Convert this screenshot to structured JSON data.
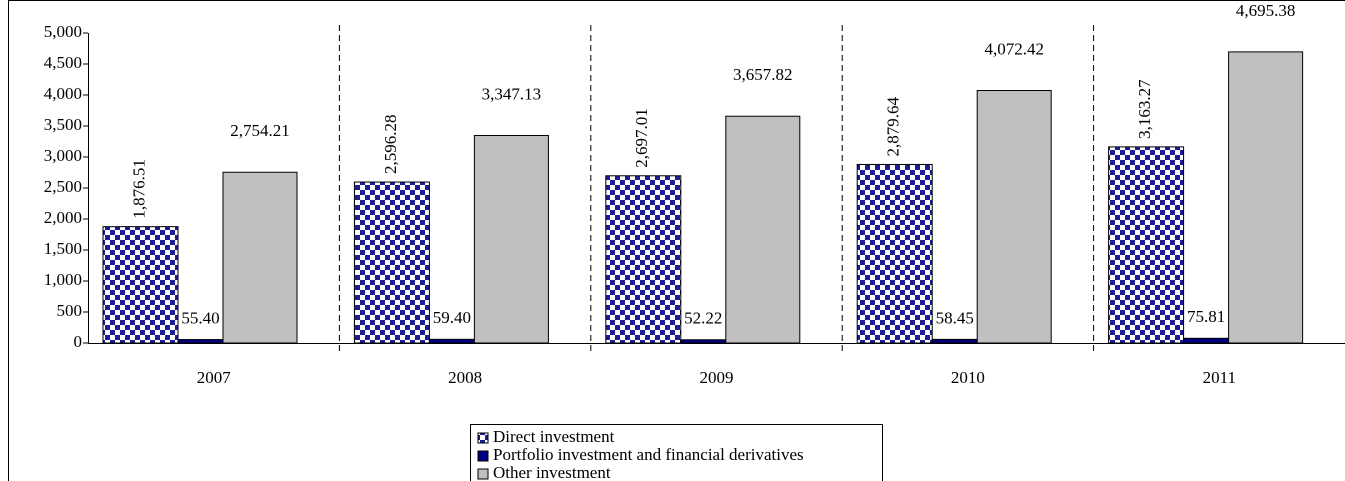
{
  "chart_data": {
    "type": "bar",
    "categories": [
      "2007",
      "2008",
      "2009",
      "2010",
      "2011"
    ],
    "series": [
      {
        "name": "Direct investment",
        "color": "#1c1c96",
        "pattern": "checker",
        "values": [
          1876.51,
          2596.28,
          2697.01,
          2879.64,
          3163.27
        ],
        "value_labels": [
          "1,876.51",
          "2,596.28",
          "2,697.01",
          "2,879.64",
          "3,163.27"
        ]
      },
      {
        "name": "Portfolio investment and financial derivatives",
        "color": "#000080",
        "values": [
          55.4,
          59.4,
          52.22,
          58.45,
          75.81
        ],
        "value_labels": [
          "55.40",
          "59.40",
          "52.22",
          "58.45",
          "75.81"
        ]
      },
      {
        "name": "Other investment",
        "color": "#c0c0c0",
        "values": [
          2754.21,
          3347.13,
          3657.82,
          4072.42,
          4695.38
        ],
        "value_labels": [
          "2,754.21",
          "3,347.13",
          "3,657.82",
          "4,072.42",
          "4,695.38"
        ]
      }
    ],
    "ylim": [
      0,
      5000
    ],
    "yticks": [
      0,
      500,
      {
        "value": 1000,
        "label": "1,000"
      },
      {
        "value": 1500,
        "label": "1,500"
      },
      {
        "value": 2000,
        "label": "2,000"
      },
      {
        "value": 2500,
        "label": "2,500"
      },
      {
        "value": 3000,
        "label": "3,000"
      },
      {
        "value": 3500,
        "label": "3,500"
      },
      {
        "value": 4000,
        "label": "4,000"
      },
      {
        "value": 4500,
        "label": "4,500"
      },
      {
        "value": 5000,
        "label": "5,000"
      }
    ],
    "legend": "bottom"
  }
}
